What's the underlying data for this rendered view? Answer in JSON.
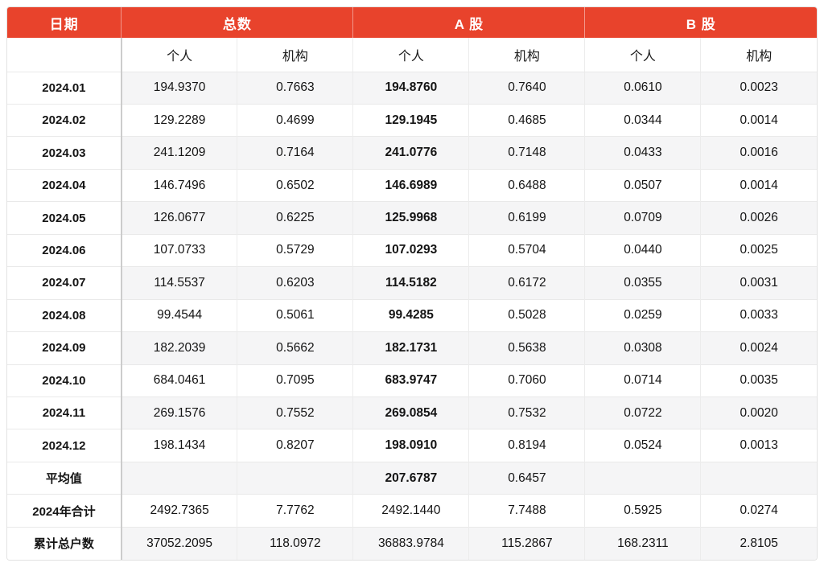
{
  "colors": {
    "header_bg": "#E8432C",
    "header_text": "#FFFFFF",
    "row_stripe": "#F5F5F6",
    "border_light": "#ECECEC",
    "border_dark": "#CCCCCC",
    "text": "#151515"
  },
  "table": {
    "header": {
      "date_label": "日期",
      "groups": [
        {
          "label": "总数",
          "sub": [
            "个人",
            "机构"
          ]
        },
        {
          "label": "A 股",
          "sub": [
            "个人",
            "机构"
          ]
        },
        {
          "label": "B 股",
          "sub": [
            "个人",
            "机构"
          ]
        }
      ]
    },
    "rows": [
      {
        "label": "2024.01",
        "values": [
          "194.9370",
          "0.7663",
          "194.8760",
          "0.7640",
          "0.0610",
          "0.0023"
        ],
        "a_share_personal_bold": true
      },
      {
        "label": "2024.02",
        "values": [
          "129.2289",
          "0.4699",
          "129.1945",
          "0.4685",
          "0.0344",
          "0.0014"
        ],
        "a_share_personal_bold": true
      },
      {
        "label": "2024.03",
        "values": [
          "241.1209",
          "0.7164",
          "241.0776",
          "0.7148",
          "0.0433",
          "0.0016"
        ],
        "a_share_personal_bold": true
      },
      {
        "label": "2024.04",
        "values": [
          "146.7496",
          "0.6502",
          "146.6989",
          "0.6488",
          "0.0507",
          "0.0014"
        ],
        "a_share_personal_bold": true
      },
      {
        "label": "2024.05",
        "values": [
          "126.0677",
          "0.6225",
          "125.9968",
          "0.6199",
          "0.0709",
          "0.0026"
        ],
        "a_share_personal_bold": true
      },
      {
        "label": "2024.06",
        "values": [
          "107.0733",
          "0.5729",
          "107.0293",
          "0.5704",
          "0.0440",
          "0.0025"
        ],
        "a_share_personal_bold": true
      },
      {
        "label": "2024.07",
        "values": [
          "114.5537",
          "0.6203",
          "114.5182",
          "0.6172",
          "0.0355",
          "0.0031"
        ],
        "a_share_personal_bold": true
      },
      {
        "label": "2024.08",
        "values": [
          "99.4544",
          "0.5061",
          "99.4285",
          "0.5028",
          "0.0259",
          "0.0033"
        ],
        "a_share_personal_bold": true
      },
      {
        "label": "2024.09",
        "values": [
          "182.2039",
          "0.5662",
          "182.1731",
          "0.5638",
          "0.0308",
          "0.0024"
        ],
        "a_share_personal_bold": true
      },
      {
        "label": "2024.10",
        "values": [
          "684.0461",
          "0.7095",
          "683.9747",
          "0.7060",
          "0.0714",
          "0.0035"
        ],
        "a_share_personal_bold": true
      },
      {
        "label": "2024.11",
        "values": [
          "269.1576",
          "0.7552",
          "269.0854",
          "0.7532",
          "0.0722",
          "0.0020"
        ],
        "a_share_personal_bold": true
      },
      {
        "label": "2024.12",
        "values": [
          "198.1434",
          "0.8207",
          "198.0910",
          "0.8194",
          "0.0524",
          "0.0013"
        ],
        "a_share_personal_bold": true
      },
      {
        "label": "平均值",
        "values": [
          "",
          "",
          "207.6787",
          "0.6457",
          "",
          ""
        ],
        "a_share_personal_bold": true
      },
      {
        "label": "2024年合计",
        "values": [
          "2492.7365",
          "7.7762",
          "2492.1440",
          "7.7488",
          "0.5925",
          "0.0274"
        ],
        "a_share_personal_bold": false
      },
      {
        "label": "累计总户数",
        "values": [
          "37052.2095",
          "118.0972",
          "36883.9784",
          "115.2867",
          "168.2311",
          "2.8105"
        ],
        "a_share_personal_bold": false
      }
    ]
  },
  "chart_data": {
    "type": "table",
    "title": "",
    "columns": [
      "日期",
      "总数-个人",
      "总数-机构",
      "A股-个人",
      "A股-机构",
      "B股-个人",
      "B股-机构"
    ],
    "rows": [
      [
        "2024.01",
        "194.9370",
        "0.7663",
        "194.8760",
        "0.7640",
        "0.0610",
        "0.0023"
      ],
      [
        "2024.02",
        "129.2289",
        "0.4699",
        "129.1945",
        "0.4685",
        "0.0344",
        "0.0014"
      ],
      [
        "2024.03",
        "241.1209",
        "0.7164",
        "241.0776",
        "0.7148",
        "0.0433",
        "0.0016"
      ],
      [
        "2024.04",
        "146.7496",
        "0.6502",
        "146.6989",
        "0.6488",
        "0.0507",
        "0.0014"
      ],
      [
        "2024.05",
        "126.0677",
        "0.6225",
        "125.9968",
        "0.6199",
        "0.0709",
        "0.0026"
      ],
      [
        "2024.06",
        "107.0733",
        "0.5729",
        "107.0293",
        "0.5704",
        "0.0440",
        "0.0025"
      ],
      [
        "2024.07",
        "114.5537",
        "0.6203",
        "114.5182",
        "0.6172",
        "0.0355",
        "0.0031"
      ],
      [
        "2024.08",
        "99.4544",
        "0.5061",
        "99.4285",
        "0.5028",
        "0.0259",
        "0.0033"
      ],
      [
        "2024.09",
        "182.2039",
        "0.5662",
        "182.1731",
        "0.5638",
        "0.0308",
        "0.0024"
      ],
      [
        "2024.10",
        "684.0461",
        "0.7095",
        "683.9747",
        "0.7060",
        "0.0714",
        "0.0035"
      ],
      [
        "2024.11",
        "269.1576",
        "0.7552",
        "269.0854",
        "0.7532",
        "0.0722",
        "0.0020"
      ],
      [
        "2024.12",
        "198.1434",
        "0.8207",
        "198.0910",
        "0.8194",
        "0.0524",
        "0.0013"
      ],
      [
        "平均值",
        "",
        "",
        "207.6787",
        "0.6457",
        "",
        ""
      ],
      [
        "2024年合计",
        "2492.7365",
        "7.7762",
        "2492.1440",
        "7.7488",
        "0.5925",
        "0.0274"
      ],
      [
        "累计总户数",
        "37052.2095",
        "118.0972",
        "36883.9784",
        "115.2867",
        "168.2311",
        "2.8105"
      ]
    ]
  }
}
